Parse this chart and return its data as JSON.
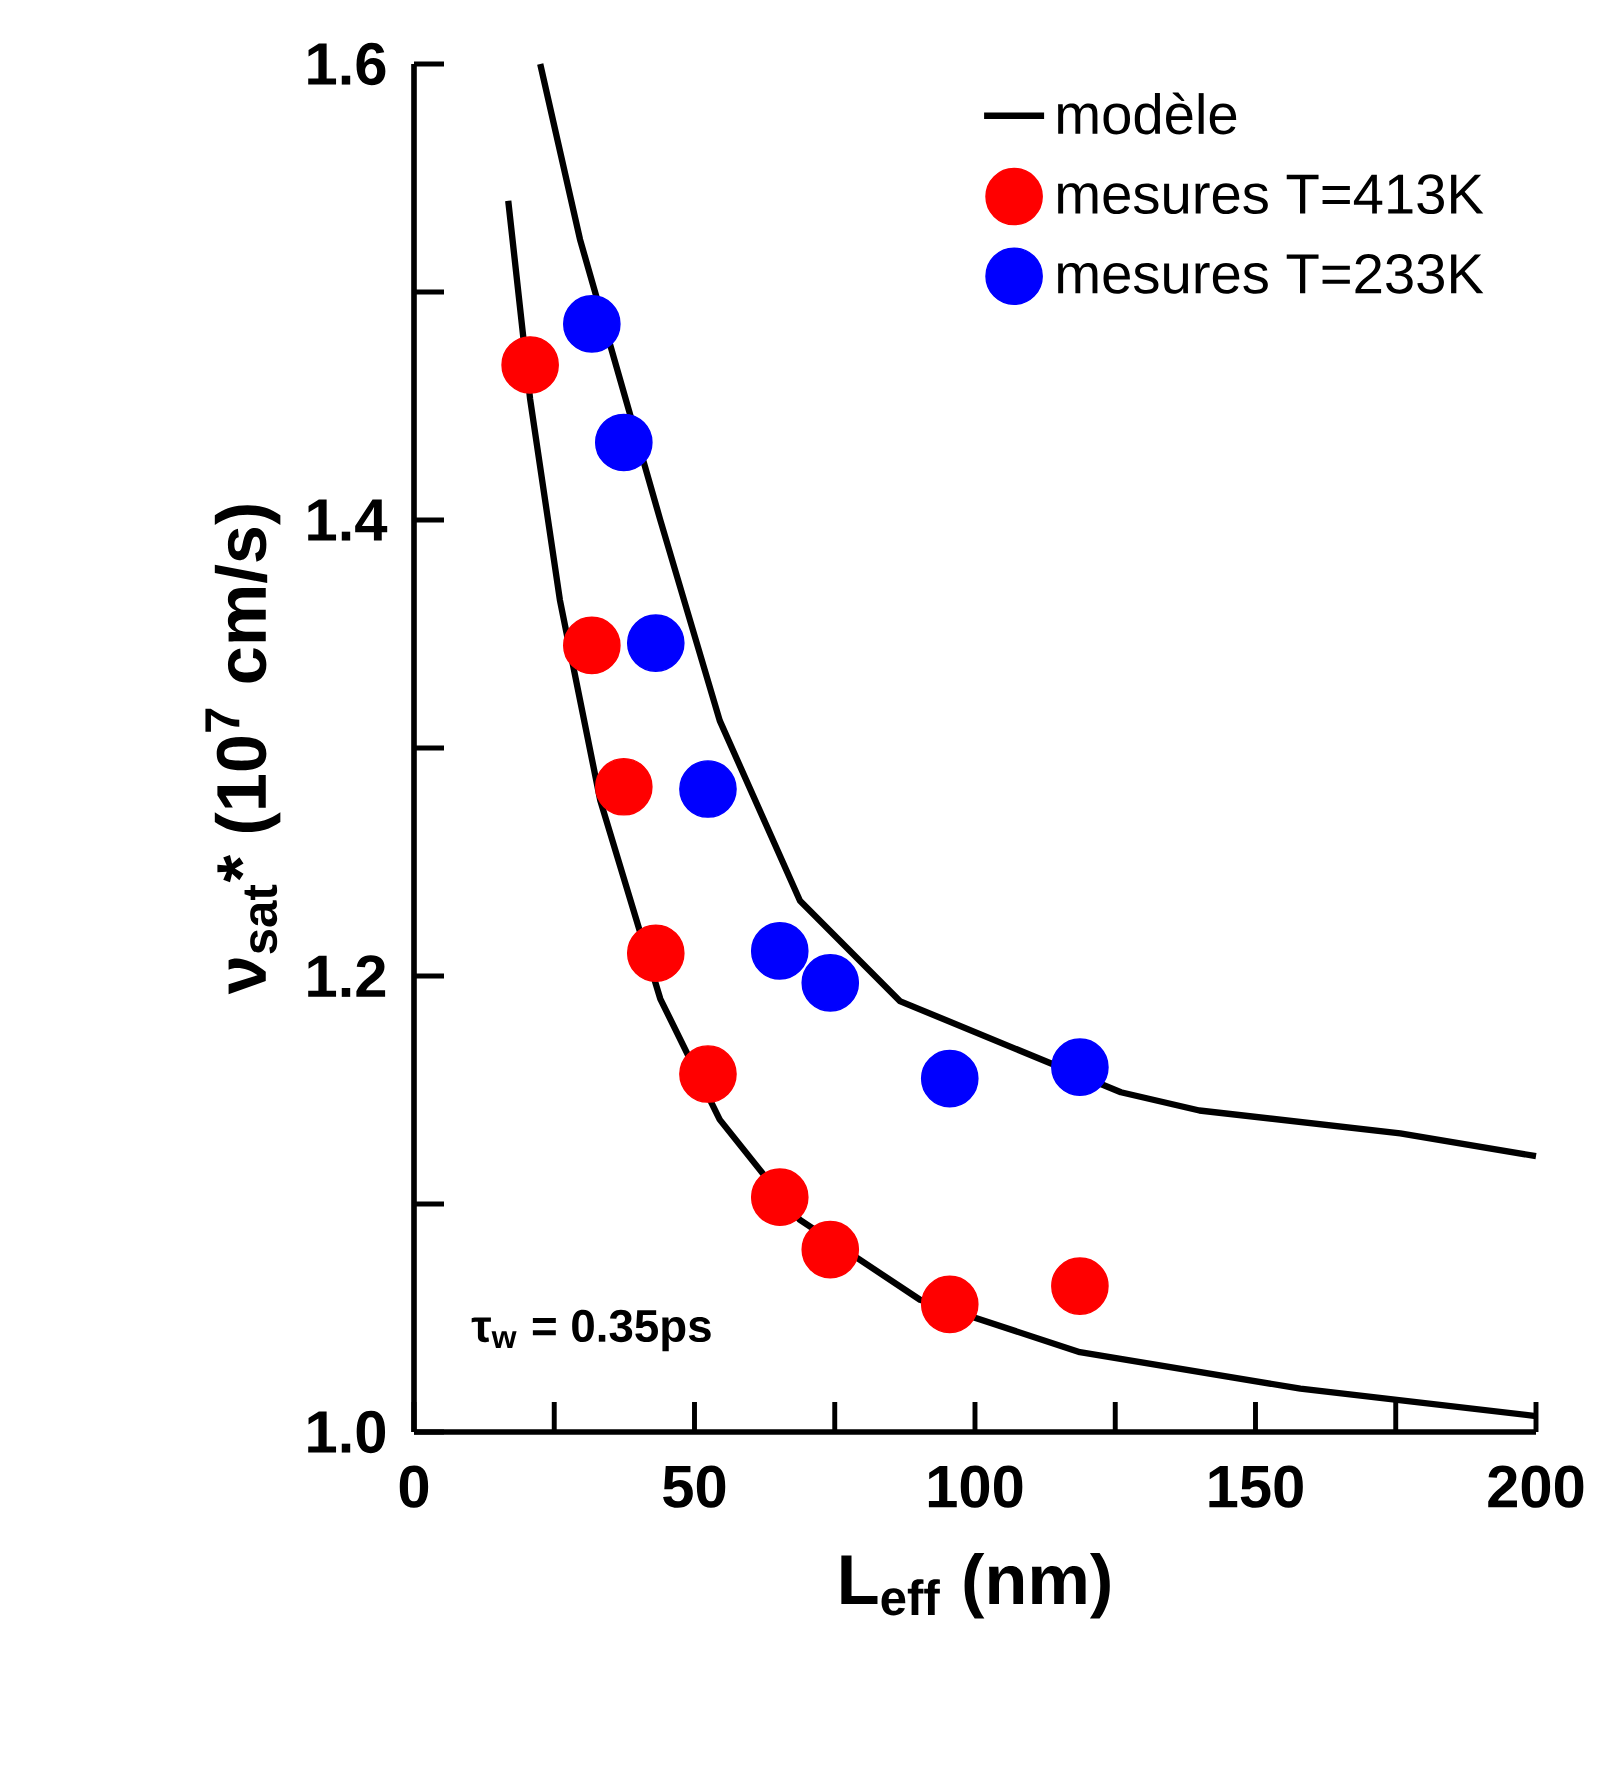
{
  "chart_data": {
    "type": "scatter",
    "xlabel": "L$_{eff}$ (nm)",
    "ylabel": "ν$_{sat}$* (10$^{7}$ cm/s)",
    "xlim": [
      0,
      200
    ],
    "ylim": [
      1.0,
      1.6
    ],
    "xticks": [
      0,
      {
        "value": 25,
        "label": null
      },
      50,
      {
        "value": 75,
        "label": null
      },
      100,
      {
        "value": 125,
        "label": null
      },
      150,
      {
        "value": 175,
        "label": null
      },
      200
    ],
    "yticks": [
      {
        "value": 1.0,
        "label": "1.0"
      },
      {
        "value": 1.1,
        "label": null
      },
      1.2,
      {
        "value": 1.3,
        "label": null
      },
      1.4,
      {
        "value": 1.5,
        "label": null
      },
      1.6
    ],
    "legend": "top right",
    "grid": false,
    "annotations": [
      "τ$_{w}$ = 0.35ps"
    ],
    "series": [
      {
        "name": "modèle",
        "type": "line",
        "color": "#000000",
        "x": [
          22.5,
          29.6,
          43.9,
          54.5,
          68.8,
          86.6,
          126,
          140,
          175.8,
          200
        ],
        "values": [
          1.6,
          1.523,
          1.4,
          1.312,
          1.233,
          1.189,
          1.149,
          1.141,
          1.131,
          1.121
        ]
      },
      {
        "type": "line",
        "color": "#000000",
        "x": [
          16.8,
          20.7,
          26,
          33.2,
          43.9,
          54.5,
          68.8,
          90.2,
          118.7,
          158,
          200
        ],
        "values": [
          1.54,
          1.453,
          1.365,
          1.277,
          1.19,
          1.137,
          1.093,
          1.058,
          1.035,
          1.019,
          1.007
        ]
      },
      {
        "name": "mesures T=413K",
        "type": "scatter",
        "marker": "circle",
        "color": "#ff0000",
        "x": [
          20.7,
          31.7,
          37.4,
          43.1,
          52.4,
          65.2,
          74.2,
          95.5,
          118.7
        ],
        "values": [
          1.468,
          1.345,
          1.283,
          1.21,
          1.157,
          1.103,
          1.08,
          1.056,
          1.064
        ]
      },
      {
        "name": "mesures T=233K",
        "type": "scatter",
        "marker": "circle",
        "color": "#0000ff",
        "x": [
          31.7,
          37.4,
          43.1,
          52.4,
          65.2,
          74.2,
          95.5,
          118.7
        ],
        "values": [
          1.486,
          1.434,
          1.346,
          1.282,
          1.211,
          1.197,
          1.155,
          1.16
        ]
      }
    ]
  }
}
